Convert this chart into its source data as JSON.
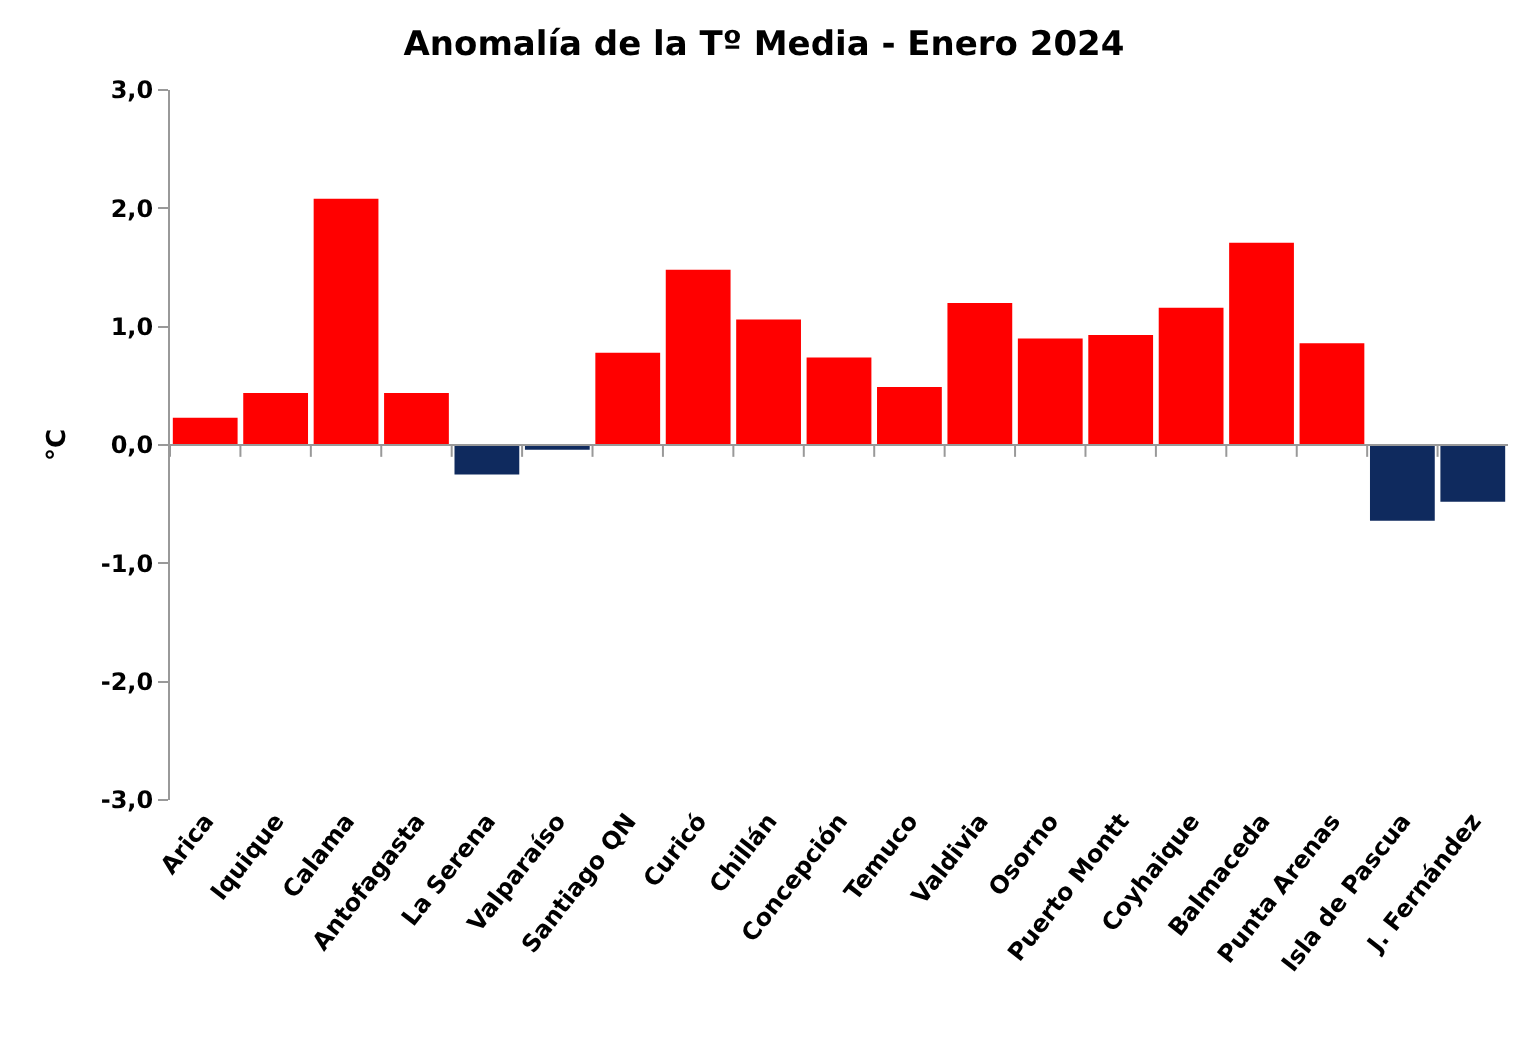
{
  "chart_data": {
    "type": "bar",
    "title": "Anomalía de la Tº Media - Enero 2024",
    "ylabel": "°C",
    "categories": [
      "Arica",
      "Iquique",
      "Calama",
      "Antofagasta",
      "La Serena",
      "Valparaíso",
      "Santiago QN",
      "Curicó",
      "Chillán",
      "Concepción",
      "Temuco",
      "Valdivia",
      "Osorno",
      "Puerto Montt",
      "Coyhaique",
      "Balmaceda",
      "Punta Arenas",
      "Isla de Pascua",
      "J. Fernández"
    ],
    "values": [
      0.23,
      0.44,
      2.08,
      0.44,
      -0.25,
      -0.04,
      0.78,
      1.48,
      1.06,
      0.74,
      0.49,
      1.2,
      0.9,
      0.93,
      1.16,
      1.71,
      0.86,
      -0.64,
      -0.48
    ],
    "colors": [
      "#ff0000",
      "#ff0000",
      "#ff0000",
      "#ff0000",
      "#0f2a5e",
      "#0f2a5e",
      "#ff0000",
      "#ff0000",
      "#ff0000",
      "#ff0000",
      "#ff0000",
      "#ff0000",
      "#ff0000",
      "#ff0000",
      "#ff0000",
      "#ff0000",
      "#ff0000",
      "#0f2a5e",
      "#0f2a5e"
    ],
    "ylim": [
      -3,
      3
    ],
    "yticks": [
      {
        "value": -3,
        "label": "-3,0"
      },
      {
        "value": -2,
        "label": "-2,0"
      },
      {
        "value": -1,
        "label": "-1,0"
      },
      {
        "value": 0,
        "label": "0,0"
      },
      {
        "value": 1,
        "label": "1,0"
      },
      {
        "value": 2,
        "label": "2,0"
      },
      {
        "value": 3,
        "label": "3,0"
      }
    ],
    "data_labels": false
  }
}
